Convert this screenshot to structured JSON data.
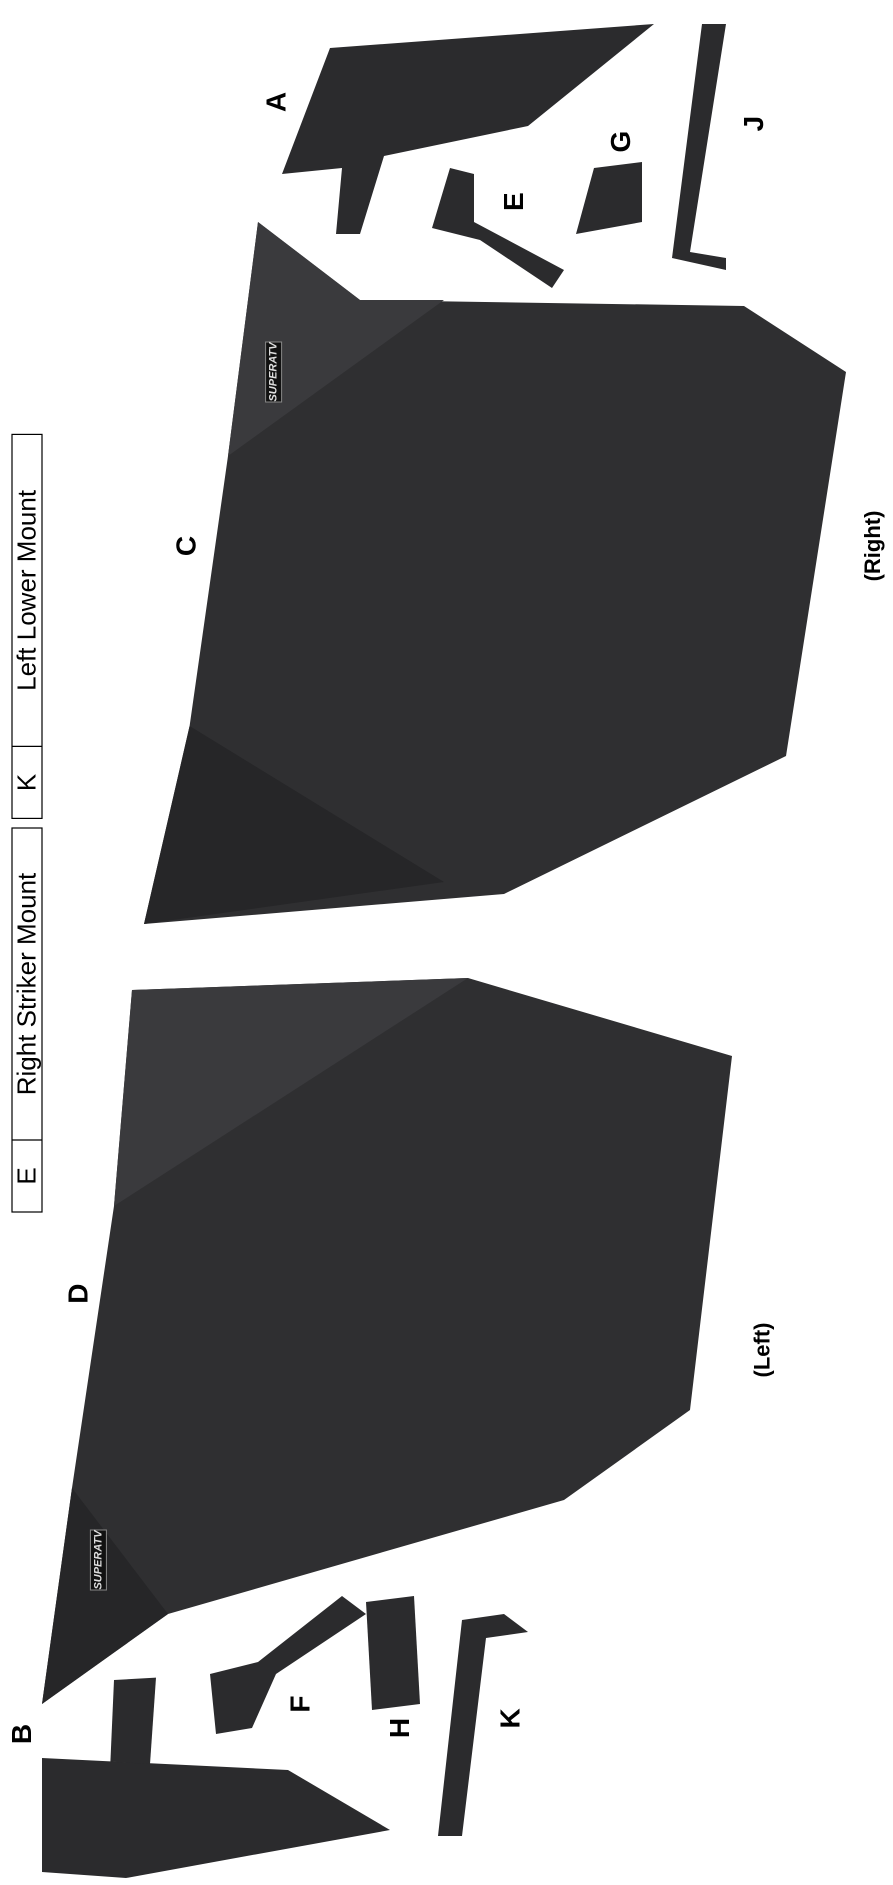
{
  "table": {
    "rows": [
      [
        "E",
        "Right Striker Mount"
      ],
      [
        "K",
        "Left Lower Mount"
      ]
    ]
  },
  "labels": [
    "A",
    "B",
    "C",
    "D",
    "E",
    "F",
    "G",
    "H",
    "J",
    "K"
  ],
  "captions": {
    "left": "(Left)",
    "right": "(Right)"
  },
  "logo": "SUPERATV"
}
